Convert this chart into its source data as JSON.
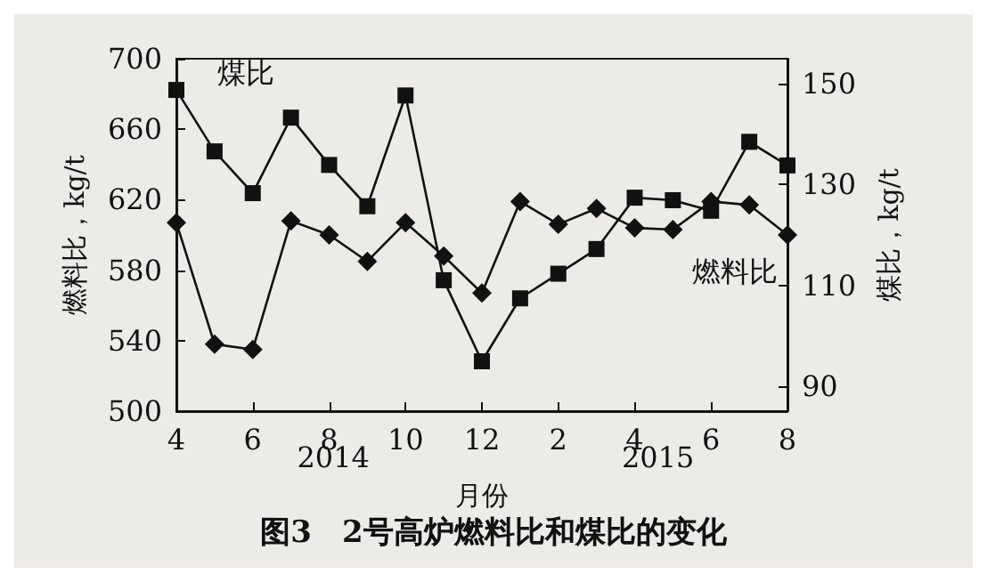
{
  "chart_data": {
    "type": "line",
    "title": "图3　2号高炉燃料比和煤比的变化",
    "xlabel": "月份",
    "ylabel": "燃料比，kg/t",
    "y2label": "煤比，kg/t",
    "categories": [
      "4",
      null,
      "6",
      null,
      "8",
      null,
      "10",
      null,
      "12",
      null,
      "2",
      null,
      "4",
      null,
      "6",
      null,
      "8"
    ],
    "annotations": [
      "2014",
      "2015"
    ],
    "ylim": [
      500,
      700
    ],
    "yticks": [
      500,
      540,
      580,
      620,
      660,
      700
    ],
    "y2lim": [
      85,
      155
    ],
    "y2ticks": [
      90,
      110,
      130,
      150
    ],
    "grid": false,
    "legend": false,
    "line_style": "solid",
    "series": [
      {
        "name": "燃料比",
        "color": "#111111",
        "marker": "diamond",
        "values": [
          607,
          538,
          535,
          608,
          600,
          585,
          607,
          588,
          567,
          619,
          606,
          615,
          604,
          603,
          619,
          617,
          600
        ]
      },
      {
        "name": "煤比",
        "color": "#111111",
        "marker": "square",
        "axis": "y2",
        "values": [
          148.8,
          136.6,
          128.3,
          143.3,
          133.9,
          125.7,
          147.7,
          111,
          94.9,
          107.4,
          112.3,
          117.2,
          127.4,
          126.9,
          124.8,
          138.5,
          133.8
        ]
      }
    ]
  }
}
